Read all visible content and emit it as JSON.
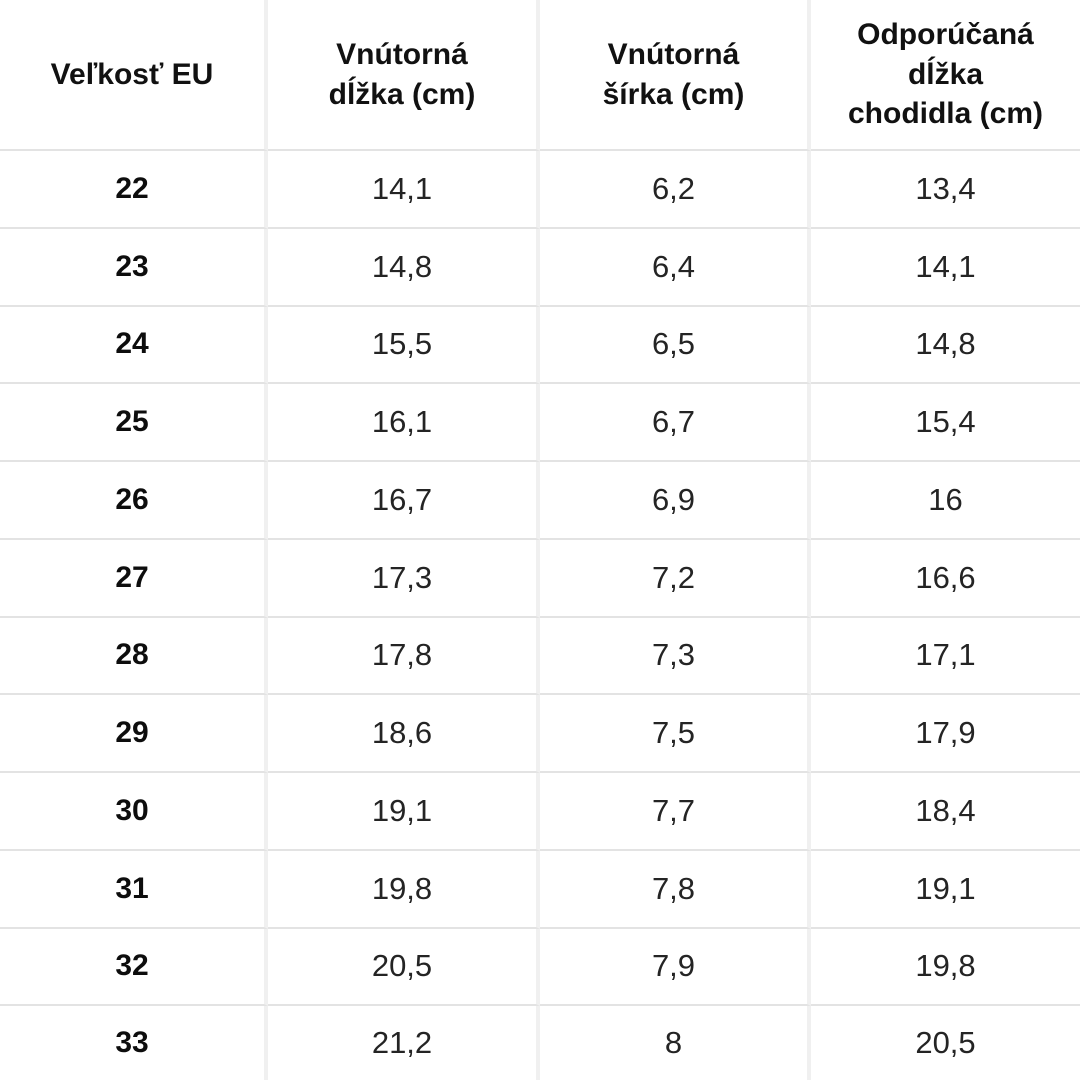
{
  "chart_data": {
    "type": "table",
    "title": "",
    "columns": [
      "Veľkosť EU",
      "Vnútorná dĺžka (cm)",
      "Vnútorná šírka (cm)",
      "Odporúčaná dĺžka chodidla (cm)"
    ],
    "header_display_lines": [
      [
        "Veľkosť EU"
      ],
      [
        "Vnútorná",
        "dĺžka (cm)"
      ],
      [
        "Vnútorná",
        "šírka (cm)"
      ],
      [
        "Odporúčaná",
        "dĺžka",
        "chodidla (cm)"
      ]
    ],
    "rows": [
      [
        "22",
        "14,1",
        "6,2",
        "13,4"
      ],
      [
        "23",
        "14,8",
        "6,4",
        "14,1"
      ],
      [
        "24",
        "15,5",
        "6,5",
        "14,8"
      ],
      [
        "25",
        "16,1",
        "6,7",
        "15,4"
      ],
      [
        "26",
        "16,7",
        "6,9",
        "16"
      ],
      [
        "27",
        "17,3",
        "7,2",
        "16,6"
      ],
      [
        "28",
        "17,8",
        "7,3",
        "17,1"
      ],
      [
        "29",
        "18,6",
        "7,5",
        "17,9"
      ],
      [
        "30",
        "19,1",
        "7,7",
        "18,4"
      ],
      [
        "31",
        "19,8",
        "7,8",
        "19,1"
      ],
      [
        "32",
        "20,5",
        "7,9",
        "19,8"
      ],
      [
        "33",
        "21,2",
        "8",
        "20,5"
      ]
    ],
    "decimal_separator": ",",
    "layout": {
      "grid": "on",
      "header_row_bold": true,
      "first_column_bold": true
    }
  },
  "colors": {
    "background": "#ffffff",
    "header_text": "#111111",
    "cell_text": "#242424",
    "horizontal_rule": "#e3e3e3",
    "vertical_rule": "#f0f0f0"
  }
}
